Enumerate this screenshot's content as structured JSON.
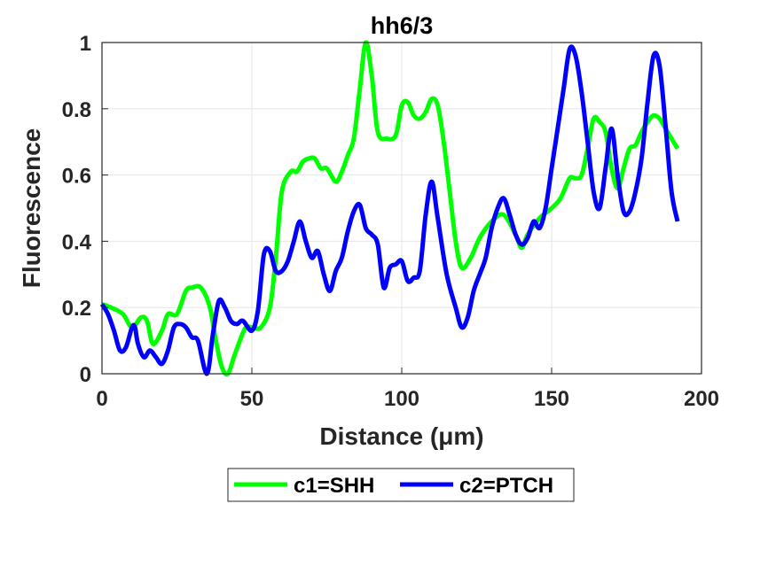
{
  "chart_data": {
    "type": "line",
    "title": "hh6/3",
    "xlabel": "Distance  (μm)",
    "ylabel": "Fluorescence",
    "xlim": [
      0,
      200
    ],
    "ylim": [
      0,
      1
    ],
    "xticks": [
      "0",
      "50",
      "100",
      "150",
      "200"
    ],
    "yticks": [
      "0",
      "0.2",
      "0.4",
      "0.6",
      "0.8",
      "1"
    ],
    "grid": true,
    "legend_position": "bottom-outside",
    "series": [
      {
        "name": "c1=SHH",
        "color": "#00ff00",
        "x": [
          0,
          3,
          7,
          10,
          13,
          15,
          17,
          20,
          22,
          25,
          28,
          30,
          33,
          36,
          38,
          40,
          42,
          44,
          46,
          48,
          50,
          53,
          56,
          58,
          60,
          63,
          65,
          67,
          69,
          71,
          73,
          75,
          78,
          80,
          82,
          84,
          86,
          88,
          90,
          92,
          95,
          98,
          100,
          102,
          104,
          106,
          108,
          110,
          112,
          114,
          116,
          118,
          120,
          123,
          126,
          130,
          134,
          138,
          140,
          142,
          146,
          150,
          153,
          156,
          158,
          160,
          162,
          164,
          166,
          168,
          170,
          172,
          174,
          176,
          178,
          180,
          182,
          184,
          186,
          188,
          190,
          192
        ],
        "y": [
          0.21,
          0.2,
          0.18,
          0.14,
          0.17,
          0.16,
          0.09,
          0.13,
          0.18,
          0.18,
          0.25,
          0.26,
          0.26,
          0.2,
          0.1,
          0.02,
          0.0,
          0.05,
          0.1,
          0.14,
          0.14,
          0.14,
          0.2,
          0.35,
          0.55,
          0.61,
          0.61,
          0.64,
          0.65,
          0.65,
          0.62,
          0.62,
          0.58,
          0.61,
          0.66,
          0.71,
          0.86,
          1.0,
          0.9,
          0.73,
          0.71,
          0.72,
          0.81,
          0.82,
          0.78,
          0.77,
          0.79,
          0.83,
          0.81,
          0.7,
          0.55,
          0.4,
          0.32,
          0.35,
          0.41,
          0.46,
          0.48,
          0.42,
          0.38,
          0.42,
          0.47,
          0.5,
          0.53,
          0.59,
          0.59,
          0.6,
          0.68,
          0.77,
          0.76,
          0.73,
          0.62,
          0.56,
          0.62,
          0.68,
          0.69,
          0.73,
          0.76,
          0.78,
          0.77,
          0.74,
          0.71,
          0.68
        ]
      },
      {
        "name": "c2=PTCH",
        "color": "#0000ff",
        "x": [
          0,
          2,
          4,
          6,
          8,
          10,
          11,
          12,
          14,
          16,
          18,
          20,
          22,
          24,
          26,
          28,
          30,
          32,
          35,
          37,
          39,
          41,
          43,
          45,
          47,
          50,
          52,
          54,
          56,
          58,
          60,
          62,
          64,
          66,
          68,
          70,
          72,
          74,
          76,
          78,
          80,
          82,
          84,
          86,
          88,
          90,
          92,
          94,
          96,
          98,
          100,
          102,
          104,
          106,
          108,
          110,
          112,
          115,
          118,
          120,
          122,
          124,
          126,
          128,
          130,
          132,
          134,
          136,
          138,
          140,
          142,
          144,
          146,
          148,
          150,
          152,
          154,
          156,
          158,
          160,
          162,
          164,
          166,
          168,
          170,
          172,
          174,
          176,
          178,
          180,
          182,
          184,
          186,
          188,
          190,
          192
        ],
        "y": [
          0.21,
          0.18,
          0.13,
          0.07,
          0.08,
          0.14,
          0.14,
          0.09,
          0.05,
          0.07,
          0.05,
          0.03,
          0.07,
          0.14,
          0.15,
          0.14,
          0.11,
          0.1,
          0.0,
          0.12,
          0.22,
          0.2,
          0.16,
          0.15,
          0.16,
          0.13,
          0.19,
          0.36,
          0.37,
          0.31,
          0.31,
          0.34,
          0.4,
          0.46,
          0.4,
          0.35,
          0.37,
          0.3,
          0.25,
          0.31,
          0.35,
          0.43,
          0.49,
          0.51,
          0.44,
          0.42,
          0.39,
          0.26,
          0.32,
          0.33,
          0.34,
          0.28,
          0.29,
          0.31,
          0.48,
          0.58,
          0.47,
          0.3,
          0.2,
          0.14,
          0.17,
          0.25,
          0.3,
          0.35,
          0.44,
          0.5,
          0.53,
          0.48,
          0.42,
          0.39,
          0.41,
          0.46,
          0.44,
          0.5,
          0.62,
          0.74,
          0.86,
          0.98,
          0.96,
          0.85,
          0.7,
          0.55,
          0.5,
          0.62,
          0.74,
          0.6,
          0.49,
          0.49,
          0.55,
          0.65,
          0.82,
          0.96,
          0.93,
          0.75,
          0.55,
          0.46
        ]
      }
    ]
  }
}
